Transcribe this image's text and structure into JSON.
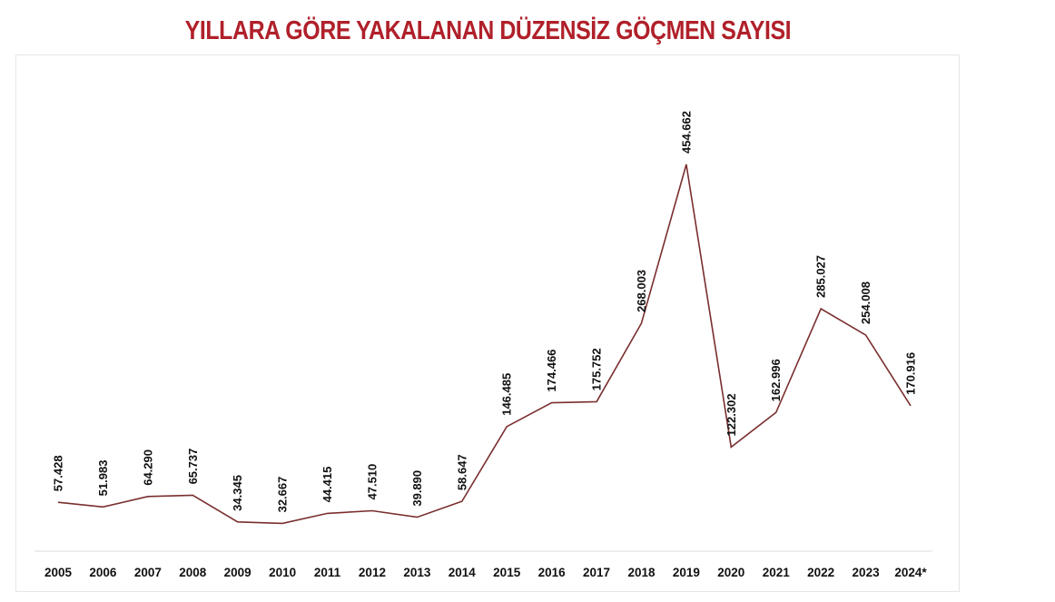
{
  "chart_data": {
    "type": "line",
    "title": "YILLARA GÖRE YAKALANAN DÜZENSİZ GÖÇMEN SAYISI",
    "xlabel": "",
    "ylabel": "",
    "categories": [
      "2005",
      "2006",
      "2007",
      "2008",
      "2009",
      "2010",
      "2011",
      "2012",
      "2013",
      "2014",
      "2015",
      "2016",
      "2017",
      "2018",
      "2019",
      "2020",
      "2021",
      "2022",
      "2023",
      "2024*"
    ],
    "series": [
      {
        "values": [
          57428,
          51983,
          64290,
          65737,
          34345,
          32667,
          44415,
          47510,
          39890,
          58647,
          146485,
          174466,
          175752,
          268003,
          454662,
          122302,
          162996,
          285027,
          254008,
          170916
        ]
      }
    ],
    "data_labels": [
      "57.428",
      "51.983",
      "64.290",
      "65.737",
      "34.345",
      "32.667",
      "44.415",
      "47.510",
      "39.890",
      "58.647",
      "146.485",
      "174.466",
      "175.752",
      "268.003",
      "454.662",
      "122.302",
      "162.996",
      "285.027",
      "254.008",
      "170.916"
    ],
    "ylim": [
      0,
      490000
    ],
    "grid": false,
    "legend": "none",
    "y_axis_visible": false,
    "colors": {
      "title": "#b0202a",
      "line": "#7a2e2e",
      "baseline": "#dddddd",
      "text": "#111111"
    }
  }
}
